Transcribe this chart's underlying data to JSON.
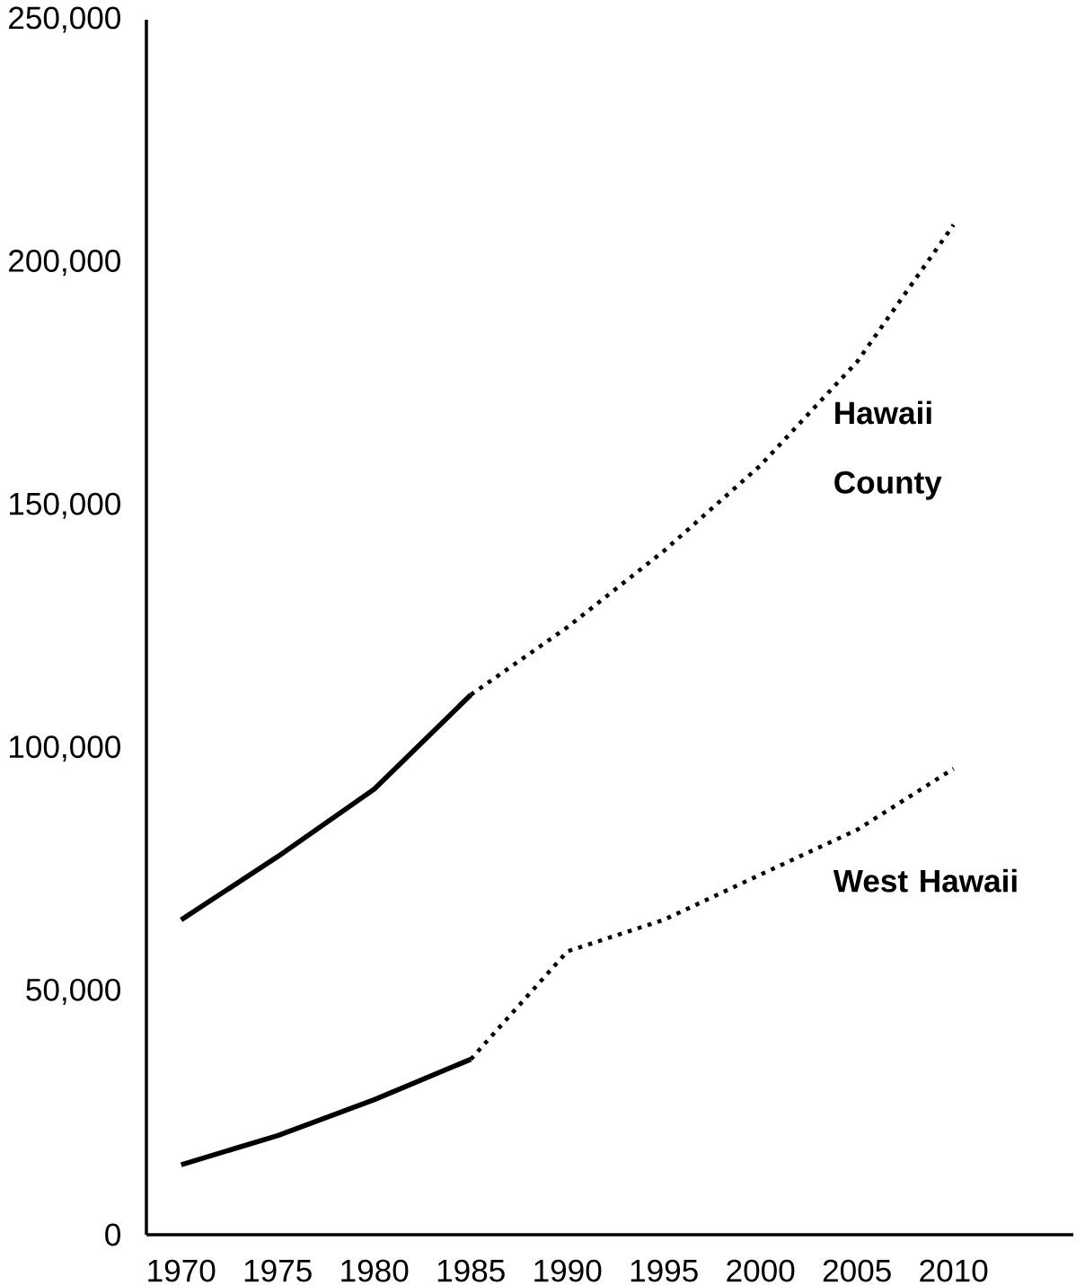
{
  "chart_data": {
    "type": "line",
    "series": [
      {
        "color": "#000000",
        "line_style": "solid",
        "x": [
          1970,
          1975,
          1980,
          1985
        ],
        "values": [
          64800,
          77800,
          91700,
          111100
        ]
      },
      {
        "name": "Hawaii County",
        "color": "#000000",
        "line_style": "dotted",
        "x": [
          1985,
          1990,
          1995,
          2000,
          2005,
          2010
        ],
        "values": [
          111100,
          125000,
          140700,
          158300,
          179600,
          207800
        ]
      },
      {
        "color": "#000000",
        "line_style": "solid",
        "x": [
          1970,
          1975,
          1980,
          1985
        ],
        "values": [
          14400,
          20400,
          27800,
          36100
        ]
      },
      {
        "name": "West Hawaii",
        "color": "#000000",
        "line_style": "dotted",
        "x": [
          1985,
          1990,
          1995,
          2000,
          2005,
          2010
        ],
        "values": [
          36100,
          58300,
          64800,
          74100,
          83300,
          95900
        ]
      }
    ],
    "xlim": [
      1968.2,
      2016.2
    ],
    "ylim": [
      0,
      250000
    ],
    "xticks": [
      1970,
      1975,
      1980,
      1985,
      1990,
      1995,
      2000,
      2005,
      2010
    ],
    "yticks": [
      {
        "value": 0,
        "label": "0"
      },
      {
        "value": 50000,
        "label": "50,000"
      },
      {
        "value": 100000,
        "label": "100,000"
      },
      {
        "value": 150000,
        "label": "150,000"
      },
      {
        "value": 200000,
        "label": "200,000"
      },
      {
        "value": 250000,
        "label": "250,000"
      }
    ],
    "grid": false,
    "legend": false,
    "marker": "none"
  }
}
